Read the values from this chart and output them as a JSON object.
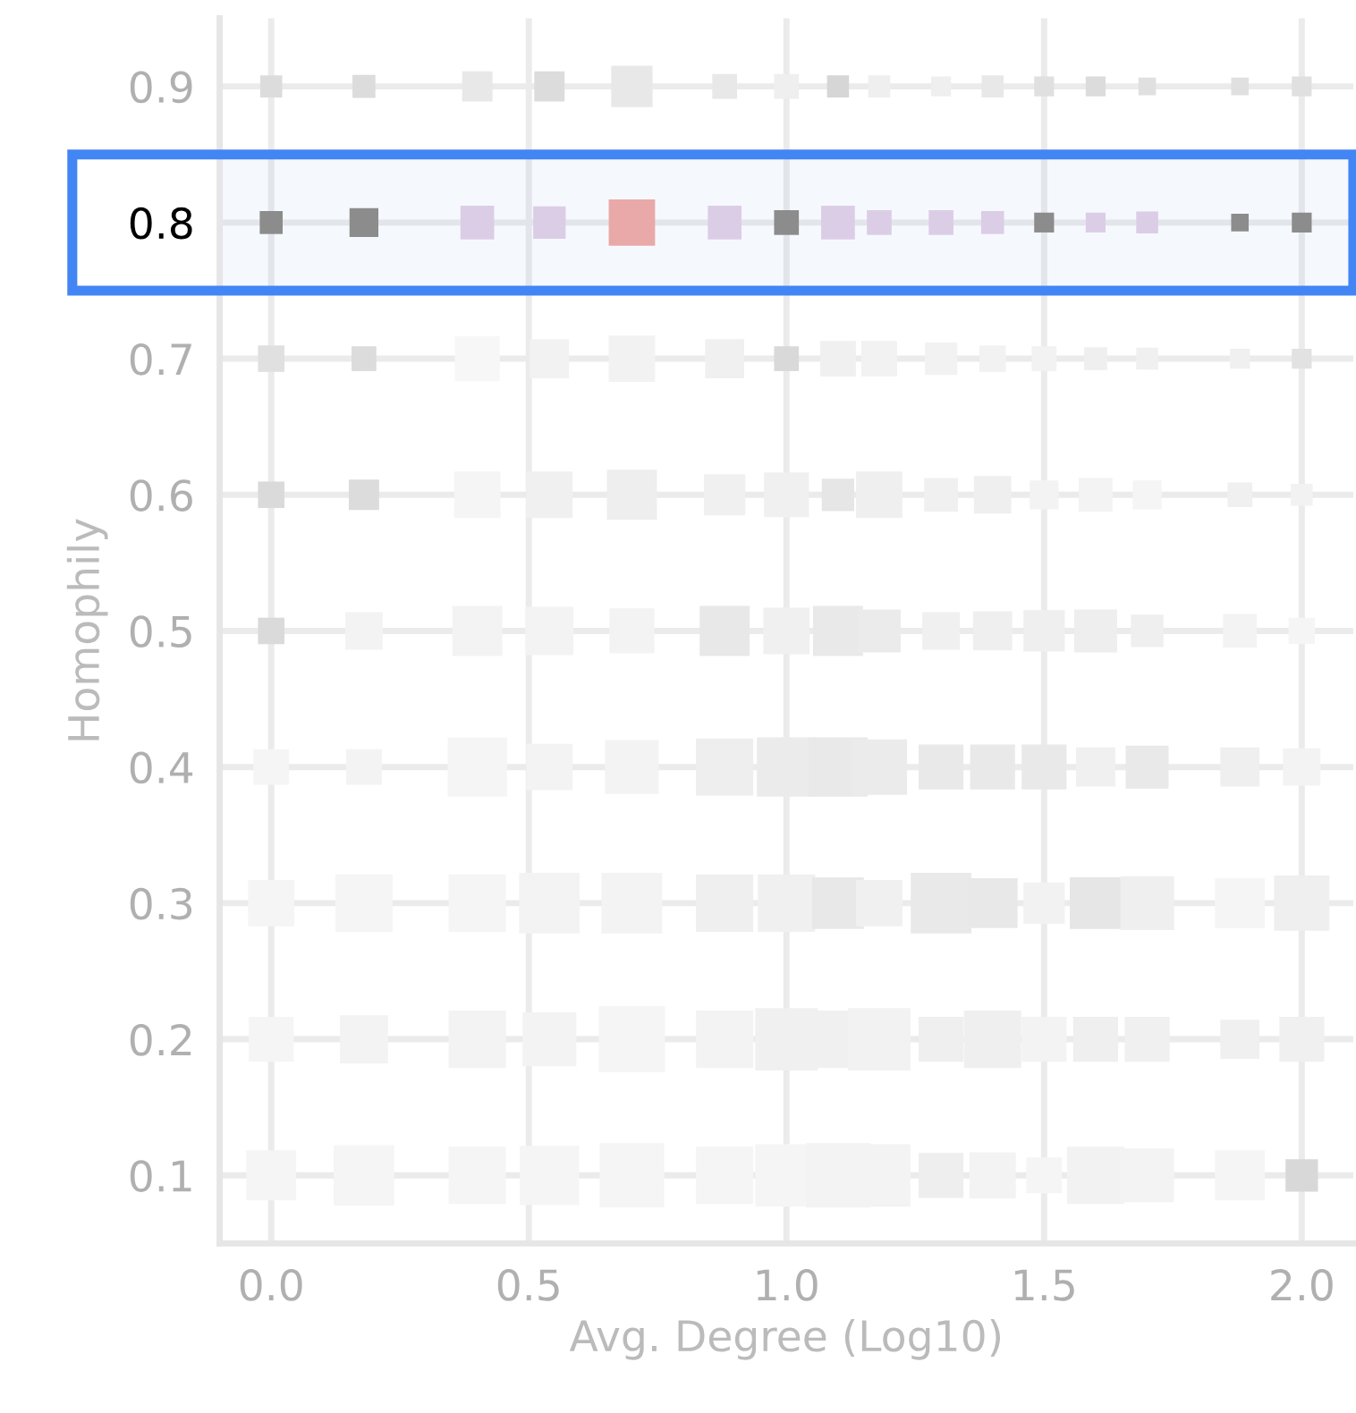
{
  "chart_data": {
    "type": "scatter",
    "xlabel": "Avg. Degree (Log10)",
    "ylabel": "Homophily",
    "marker": "square",
    "grid": true,
    "legend": false,
    "x": [
      0,
      0.18,
      0.4,
      0.54,
      0.7,
      0.88,
      1.0,
      1.1,
      1.18,
      1.3,
      1.4,
      1.5,
      1.6,
      1.7,
      1.88,
      2.0
    ],
    "xlim": [
      -0.1,
      2.1
    ],
    "ylim": [
      0.05,
      0.95
    ],
    "xticks": [
      {
        "value": 0,
        "label": "0.0"
      },
      {
        "value": 0.5,
        "label": "0.5"
      },
      {
        "value": 1,
        "label": "1.0"
      },
      {
        "value": 1.5,
        "label": "1.5"
      },
      {
        "value": 2,
        "label": "2.0"
      }
    ],
    "yticks": [
      0.1,
      0.2,
      0.3,
      0.4,
      0.5,
      0.6,
      0.7,
      0.8,
      0.9
    ],
    "bands": [
      {
        "axis": "y",
        "from": 0.75,
        "to": 0.85,
        "color": "#4285f4"
      }
    ],
    "series": [
      {
        "values": [
          0.9,
          0.9,
          0.9,
          0.9,
          0.9,
          0.9,
          0.9,
          0.9,
          0.9,
          0.9,
          0.9,
          0.9,
          0.9,
          0.9,
          0.9,
          0.9
        ],
        "sizes": [
          0.11,
          0.12,
          0.21,
          0.21,
          0.39,
          0.14,
          0.14,
          0.11,
          0.11,
          0.09,
          0.11,
          0.09,
          0.09,
          0.07,
          0.07,
          0.09
        ],
        "colors": [
          "#dcdcdc",
          "#dcdcdc",
          "#e8e8e8",
          "#dcdcdc",
          "#e8e8e8",
          "#e8e8e8",
          "#efefef",
          "#d6d6d6",
          "#efefef",
          "#efefef",
          "#e8e8e8",
          "#e0e0e0",
          "#dcdcdc",
          "#e0e0e0",
          "#e0e0e0",
          "#e0e0e0"
        ]
      },
      {
        "values": [
          0.8,
          0.8,
          0.8,
          0.8,
          0.8,
          0.8,
          0.8,
          0.8,
          0.8,
          0.8,
          0.8,
          0.8,
          0.8,
          0.8,
          0.8,
          0.8
        ],
        "sizes": [
          0.12,
          0.19,
          0.26,
          0.24,
          0.49,
          0.26,
          0.14,
          0.26,
          0.14,
          0.14,
          0.12,
          0.09,
          0.09,
          0.11,
          0.07,
          0.09
        ],
        "colors": [
          "#8c8c8c",
          "#8c8c8c",
          "#dccde6",
          "#dccde6",
          "#e9a9a9",
          "#dccde6",
          "#8c8c8c",
          "#dccde6",
          "#dccde6",
          "#dccde6",
          "#dccde6",
          "#8c8c8c",
          "#dccde6",
          "#dccde6",
          "#8c8c8c",
          "#8c8c8c"
        ]
      },
      {
        "values": [
          0.7,
          0.7,
          0.7,
          0.7,
          0.7,
          0.7,
          0.7,
          0.7,
          0.7,
          0.7,
          0.7,
          0.7,
          0.7,
          0.7,
          0.7,
          0.7
        ],
        "sizes": [
          0.16,
          0.14,
          0.46,
          0.35,
          0.49,
          0.35,
          0.14,
          0.29,
          0.29,
          0.24,
          0.16,
          0.14,
          0.12,
          0.11,
          0.09,
          0.09
        ],
        "colors": [
          "#e0e0e0",
          "#dcdcdc",
          "#f7f7f7",
          "#f2f2f2",
          "#f2f2f2",
          "#f0f0f0",
          "#d9d9d9",
          "#f0f0f0",
          "#f2f2f2",
          "#f2f2f2",
          "#f2f2f2",
          "#f2f2f2",
          "#efefef",
          "#f0f0f0",
          "#f0f0f0",
          "#e2e2e2"
        ]
      },
      {
        "values": [
          0.6,
          0.6,
          0.6,
          0.6,
          0.6,
          0.6,
          0.6,
          0.6,
          0.6,
          0.6,
          0.6,
          0.6,
          0.6,
          0.6,
          0.6,
          0.6
        ],
        "sizes": [
          0.16,
          0.21,
          0.49,
          0.49,
          0.57,
          0.39,
          0.46,
          0.24,
          0.49,
          0.26,
          0.32,
          0.19,
          0.26,
          0.19,
          0.14,
          0.11
        ],
        "colors": [
          "#dadada",
          "#dcdcdc",
          "#f5f5f5",
          "#f0f0f0",
          "#eeeeee",
          "#f0f0f0",
          "#f0f0f0",
          "#e6e6e6",
          "#efefef",
          "#f0f0f0",
          "#efefef",
          "#f3f3f3",
          "#f3f3f3",
          "#f5f5f5",
          "#f0f0f0",
          "#f2f2f2"
        ]
      },
      {
        "values": [
          0.5,
          0.5,
          0.5,
          0.5,
          0.5,
          0.5,
          0.5,
          0.5,
          0.5,
          0.5,
          0.5,
          0.5,
          0.5,
          0.5,
          0.5,
          0.5
        ],
        "sizes": [
          0.16,
          0.32,
          0.57,
          0.53,
          0.46,
          0.57,
          0.49,
          0.57,
          0.42,
          0.32,
          0.35,
          0.39,
          0.42,
          0.24,
          0.26,
          0.16
        ],
        "colors": [
          "#dadada",
          "#f3f3f3",
          "#f3f3f3",
          "#f3f3f3",
          "#f3f3f3",
          "#e8e8e8",
          "#f0f0f0",
          "#e9e9e9",
          "#ebebeb",
          "#f0f0f0",
          "#efefef",
          "#efefef",
          "#eeeeee",
          "#efefef",
          "#f3f3f3",
          "#f5f5f5"
        ]
      },
      {
        "values": [
          0.4,
          0.4,
          0.4,
          0.4,
          0.4,
          0.4,
          0.4,
          0.4,
          0.4,
          0.4,
          0.4,
          0.4,
          0.4,
          0.4,
          0.4,
          0.4
        ],
        "sizes": [
          0.29,
          0.29,
          0.8,
          0.49,
          0.66,
          0.75,
          0.8,
          0.8,
          0.7,
          0.46,
          0.46,
          0.46,
          0.35,
          0.42,
          0.35,
          0.32
        ],
        "colors": [
          "#f5f5f5",
          "#f3f3f3",
          "#f5f5f5",
          "#f3f3f3",
          "#f3f3f3",
          "#eeeeee",
          "#ebebeb",
          "#e9e9e9",
          "#ebebeb",
          "#e9e9e9",
          "#e9e9e9",
          "#e9e9e9",
          "#f0f0f0",
          "#e9e9e9",
          "#efefef",
          "#f3f3f3"
        ]
      },
      {
        "values": [
          0.3,
          0.3,
          0.3,
          0.3,
          0.3,
          0.3,
          0.3,
          0.3,
          0.3,
          0.3,
          0.3,
          0.3,
          0.3,
          0.3,
          0.3,
          0.3
        ],
        "sizes": [
          0.49,
          0.75,
          0.75,
          0.84,
          0.84,
          0.75,
          0.75,
          0.61,
          0.49,
          0.84,
          0.57,
          0.39,
          0.61,
          0.66,
          0.57,
          0.7
        ],
        "colors": [
          "#f5f5f5",
          "#f5f5f5",
          "#f5f5f5",
          "#f3f3f3",
          "#f3f3f3",
          "#efefef",
          "#f0f0f0",
          "#e8e8e8",
          "#f0f0f0",
          "#e9e9e9",
          "#e8e8e8",
          "#f2f2f2",
          "#e6e6e6",
          "#efefef",
          "#f5f5f5",
          "#efefef"
        ]
      },
      {
        "values": [
          0.2,
          0.2,
          0.2,
          0.2,
          0.2,
          0.2,
          0.2,
          0.2,
          0.2,
          0.2,
          0.2,
          0.2,
          0.2,
          0.2,
          0.2,
          0.2
        ],
        "sizes": [
          0.46,
          0.53,
          0.75,
          0.66,
          1,
          0.75,
          0.89,
          0.75,
          0.89,
          0.46,
          0.75,
          0.46,
          0.46,
          0.46,
          0.35,
          0.46
        ],
        "colors": [
          "#f5f5f5",
          "#f3f3f3",
          "#f3f3f3",
          "#f3f3f3",
          "#f5f5f5",
          "#f3f3f3",
          "#f0f0f0",
          "#f0f0f0",
          "#f2f2f2",
          "#efefef",
          "#efefef",
          "#f3f3f3",
          "#efefef",
          "#f0f0f0",
          "#f0f0f0",
          "#f0f0f0"
        ]
      },
      {
        "values": [
          0.1,
          0.1,
          0.1,
          0.1,
          0.1,
          0.1,
          0.1,
          0.1,
          0.1,
          0.1,
          0.1,
          0.1,
          0.1,
          0.1,
          0.1,
          0.1
        ],
        "sizes": [
          0.57,
          0.84,
          0.75,
          0.8,
          0.95,
          0.75,
          0.89,
          0.95,
          0.89,
          0.46,
          0.49,
          0.29,
          0.75,
          0.66,
          0.57,
          0.24
        ],
        "colors": [
          "#f5f5f5",
          "#f5f5f5",
          "#f5f5f5",
          "#f5f5f5",
          "#f5f5f5",
          "#f5f5f5",
          "#f5f5f5",
          "#f3f3f3",
          "#f3f3f3",
          "#eeeeee",
          "#f3f3f3",
          "#f5f5f5",
          "#f2f2f2",
          "#f3f3f3",
          "#f5f5f5",
          "#d8d8d8"
        ]
      }
    ]
  }
}
